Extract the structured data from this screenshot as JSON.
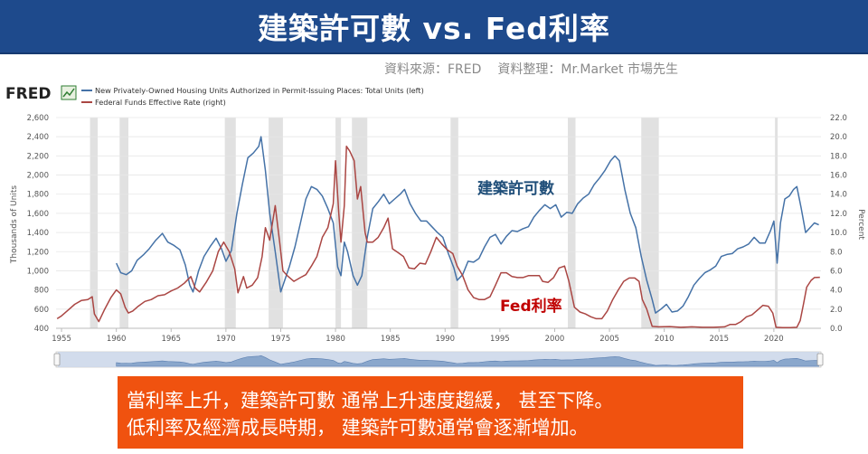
{
  "title": "建築許可數 vs. Fed利率",
  "source": {
    "data_source": "資料來源：FRED",
    "compiled_by": "資料整理：Mr.Market 市場先生"
  },
  "logo_text": "FRED",
  "colors": {
    "title_bg": "#1e4a8c",
    "permits": "#4572a7",
    "fedfunds": "#aa4643",
    "recession": "#e1e1e1",
    "note_bg": "#f0520f"
  },
  "chart_data": {
    "type": "line",
    "xlim": [
      1954.5,
      2024.3
    ],
    "x_ticks": [
      "1955",
      "1960",
      "1965",
      "1970",
      "1975",
      "1980",
      "1985",
      "1990",
      "1995",
      "2000",
      "2005",
      "2010",
      "2015",
      "2020"
    ],
    "y_left": {
      "label": "Thousands of Units",
      "lim": [
        400,
        2600
      ],
      "ticks": [
        "400",
        "600",
        "800",
        "1,000",
        "1,200",
        "1,400",
        "1,600",
        "1,800",
        "2,000",
        "2,200",
        "2,400",
        "2,600"
      ]
    },
    "y_right": {
      "label": "Percent",
      "lim": [
        0,
        22
      ],
      "ticks": [
        "0.0",
        "2.0",
        "4.0",
        "6.0",
        "8.0",
        "10.0",
        "12.0",
        "14.0",
        "16.0",
        "18.0",
        "20.0",
        "22.0"
      ]
    },
    "recessions": [
      [
        1957.6,
        1958.3
      ],
      [
        1960.3,
        1961.1
      ],
      [
        1969.9,
        1970.9
      ],
      [
        1973.9,
        1975.2
      ],
      [
        1980.0,
        1980.5
      ],
      [
        1981.5,
        1982.9
      ],
      [
        1990.5,
        1991.2
      ],
      [
        2001.2,
        2001.9
      ],
      [
        2007.9,
        2009.5
      ],
      [
        2020.1,
        2020.3
      ]
    ],
    "series": [
      {
        "name": "New Privately-Owned Housing Units Authorized in Permit-Issuing Places: Total Units (left)",
        "axis": "left",
        "points": [
          [
            1960.0,
            1080
          ],
          [
            1960.4,
            980
          ],
          [
            1960.9,
            960
          ],
          [
            1961.4,
            1000
          ],
          [
            1961.9,
            1110
          ],
          [
            1962.5,
            1170
          ],
          [
            1963.0,
            1230
          ],
          [
            1963.6,
            1320
          ],
          [
            1964.2,
            1390
          ],
          [
            1964.7,
            1300
          ],
          [
            1965.2,
            1270
          ],
          [
            1965.8,
            1220
          ],
          [
            1966.3,
            1060
          ],
          [
            1966.7,
            850
          ],
          [
            1967.0,
            780
          ],
          [
            1967.5,
            1000
          ],
          [
            1968.0,
            1150
          ],
          [
            1968.6,
            1260
          ],
          [
            1969.1,
            1340
          ],
          [
            1969.6,
            1230
          ],
          [
            1970.0,
            1100
          ],
          [
            1970.5,
            1210
          ],
          [
            1971.0,
            1600
          ],
          [
            1971.5,
            1900
          ],
          [
            1972.0,
            2180
          ],
          [
            1972.5,
            2230
          ],
          [
            1973.0,
            2300
          ],
          [
            1973.2,
            2400
          ],
          [
            1973.6,
            2050
          ],
          [
            1974.0,
            1600
          ],
          [
            1974.5,
            1200
          ],
          [
            1975.0,
            780
          ],
          [
            1975.3,
            880
          ],
          [
            1975.8,
            1050
          ],
          [
            1976.3,
            1250
          ],
          [
            1976.8,
            1500
          ],
          [
            1977.3,
            1750
          ],
          [
            1977.8,
            1880
          ],
          [
            1978.3,
            1850
          ],
          [
            1978.8,
            1780
          ],
          [
            1979.3,
            1650
          ],
          [
            1979.8,
            1500
          ],
          [
            1980.2,
            1040
          ],
          [
            1980.5,
            950
          ],
          [
            1980.8,
            1300
          ],
          [
            1981.1,
            1200
          ],
          [
            1981.6,
            950
          ],
          [
            1982.0,
            850
          ],
          [
            1982.4,
            950
          ],
          [
            1982.9,
            1350
          ],
          [
            1983.4,
            1650
          ],
          [
            1983.9,
            1720
          ],
          [
            1984.4,
            1800
          ],
          [
            1984.9,
            1700
          ],
          [
            1985.4,
            1750
          ],
          [
            1985.9,
            1800
          ],
          [
            1986.3,
            1850
          ],
          [
            1986.8,
            1700
          ],
          [
            1987.3,
            1600
          ],
          [
            1987.8,
            1520
          ],
          [
            1988.3,
            1520
          ],
          [
            1988.8,
            1460
          ],
          [
            1989.3,
            1400
          ],
          [
            1989.8,
            1350
          ],
          [
            1990.3,
            1180
          ],
          [
            1990.8,
            1030
          ],
          [
            1991.1,
            900
          ],
          [
            1991.6,
            960
          ],
          [
            1992.1,
            1100
          ],
          [
            1992.6,
            1090
          ],
          [
            1993.1,
            1130
          ],
          [
            1993.6,
            1250
          ],
          [
            1994.1,
            1350
          ],
          [
            1994.6,
            1380
          ],
          [
            1995.1,
            1280
          ],
          [
            1995.6,
            1360
          ],
          [
            1996.1,
            1420
          ],
          [
            1996.6,
            1410
          ],
          [
            1997.1,
            1440
          ],
          [
            1997.6,
            1460
          ],
          [
            1998.1,
            1560
          ],
          [
            1998.6,
            1630
          ],
          [
            1999.1,
            1690
          ],
          [
            1999.6,
            1650
          ],
          [
            2000.1,
            1690
          ],
          [
            2000.6,
            1560
          ],
          [
            2001.1,
            1610
          ],
          [
            2001.6,
            1600
          ],
          [
            2002.1,
            1700
          ],
          [
            2002.6,
            1760
          ],
          [
            2003.1,
            1800
          ],
          [
            2003.6,
            1900
          ],
          [
            2004.1,
            1970
          ],
          [
            2004.6,
            2050
          ],
          [
            2005.1,
            2150
          ],
          [
            2005.5,
            2200
          ],
          [
            2005.9,
            2150
          ],
          [
            2006.4,
            1850
          ],
          [
            2006.9,
            1600
          ],
          [
            2007.4,
            1450
          ],
          [
            2007.9,
            1150
          ],
          [
            2008.4,
            900
          ],
          [
            2008.9,
            700
          ],
          [
            2009.2,
            560
          ],
          [
            2009.7,
            600
          ],
          [
            2010.2,
            650
          ],
          [
            2010.7,
            570
          ],
          [
            2011.2,
            580
          ],
          [
            2011.7,
            630
          ],
          [
            2012.2,
            730
          ],
          [
            2012.7,
            850
          ],
          [
            2013.2,
            920
          ],
          [
            2013.7,
            980
          ],
          [
            2014.2,
            1010
          ],
          [
            2014.7,
            1050
          ],
          [
            2015.2,
            1150
          ],
          [
            2015.7,
            1170
          ],
          [
            2016.2,
            1180
          ],
          [
            2016.7,
            1230
          ],
          [
            2017.2,
            1250
          ],
          [
            2017.7,
            1280
          ],
          [
            2018.2,
            1350
          ],
          [
            2018.7,
            1290
          ],
          [
            2019.2,
            1290
          ],
          [
            2019.7,
            1420
          ],
          [
            2020.0,
            1520
          ],
          [
            2020.3,
            1080
          ],
          [
            2020.6,
            1500
          ],
          [
            2021.0,
            1750
          ],
          [
            2021.4,
            1780
          ],
          [
            2021.8,
            1850
          ],
          [
            2022.1,
            1880
          ],
          [
            2022.5,
            1650
          ],
          [
            2022.9,
            1400
          ],
          [
            2023.3,
            1450
          ],
          [
            2023.7,
            1500
          ],
          [
            2024.1,
            1480
          ]
        ]
      },
      {
        "name": "Federal Funds Effective Rate (right)",
        "axis": "right",
        "points": [
          [
            1954.6,
            1.0
          ],
          [
            1955.0,
            1.3
          ],
          [
            1955.6,
            1.9
          ],
          [
            1956.2,
            2.5
          ],
          [
            1956.8,
            2.9
          ],
          [
            1957.4,
            3.0
          ],
          [
            1957.8,
            3.3
          ],
          [
            1958.0,
            1.5
          ],
          [
            1958.4,
            0.7
          ],
          [
            1958.9,
            1.9
          ],
          [
            1959.5,
            3.2
          ],
          [
            1960.0,
            4.0
          ],
          [
            1960.4,
            3.6
          ],
          [
            1960.8,
            2.2
          ],
          [
            1961.1,
            1.6
          ],
          [
            1961.5,
            1.8
          ],
          [
            1962.0,
            2.3
          ],
          [
            1962.6,
            2.8
          ],
          [
            1963.2,
            3.0
          ],
          [
            1963.8,
            3.4
          ],
          [
            1964.4,
            3.5
          ],
          [
            1965.0,
            3.9
          ],
          [
            1965.6,
            4.2
          ],
          [
            1966.2,
            4.7
          ],
          [
            1966.8,
            5.4
          ],
          [
            1967.2,
            4.2
          ],
          [
            1967.6,
            3.8
          ],
          [
            1968.2,
            4.8
          ],
          [
            1968.8,
            6.0
          ],
          [
            1969.3,
            8.0
          ],
          [
            1969.8,
            9.0
          ],
          [
            1970.3,
            8.0
          ],
          [
            1970.8,
            6.2
          ],
          [
            1971.1,
            3.7
          ],
          [
            1971.6,
            5.4
          ],
          [
            1971.9,
            4.2
          ],
          [
            1972.4,
            4.5
          ],
          [
            1972.9,
            5.3
          ],
          [
            1973.3,
            7.5
          ],
          [
            1973.6,
            10.5
          ],
          [
            1974.0,
            9.2
          ],
          [
            1974.5,
            12.8
          ],
          [
            1974.9,
            9.0
          ],
          [
            1975.2,
            6.0
          ],
          [
            1975.6,
            5.5
          ],
          [
            1976.2,
            4.9
          ],
          [
            1976.8,
            5.3
          ],
          [
            1977.3,
            5.6
          ],
          [
            1977.8,
            6.5
          ],
          [
            1978.3,
            7.5
          ],
          [
            1978.8,
            9.5
          ],
          [
            1979.3,
            10.5
          ],
          [
            1979.8,
            13.0
          ],
          [
            1980.0,
            17.5
          ],
          [
            1980.3,
            12.0
          ],
          [
            1980.5,
            9.0
          ],
          [
            1980.8,
            12.8
          ],
          [
            1981.0,
            19.0
          ],
          [
            1981.3,
            18.5
          ],
          [
            1981.7,
            17.5
          ],
          [
            1982.0,
            13.5
          ],
          [
            1982.3,
            14.8
          ],
          [
            1982.7,
            10.0
          ],
          [
            1982.9,
            9.0
          ],
          [
            1983.4,
            9.0
          ],
          [
            1983.9,
            9.5
          ],
          [
            1984.4,
            10.5
          ],
          [
            1984.8,
            11.5
          ],
          [
            1985.2,
            8.3
          ],
          [
            1985.7,
            7.9
          ],
          [
            1986.2,
            7.5
          ],
          [
            1986.7,
            6.3
          ],
          [
            1987.2,
            6.2
          ],
          [
            1987.7,
            6.8
          ],
          [
            1988.2,
            6.7
          ],
          [
            1988.7,
            8.0
          ],
          [
            1989.2,
            9.5
          ],
          [
            1989.7,
            8.8
          ],
          [
            1990.2,
            8.2
          ],
          [
            1990.7,
            7.8
          ],
          [
            1991.1,
            6.5
          ],
          [
            1991.6,
            5.5
          ],
          [
            1992.1,
            4.0
          ],
          [
            1992.6,
            3.2
          ],
          [
            1993.1,
            3.0
          ],
          [
            1993.6,
            3.0
          ],
          [
            1994.1,
            3.3
          ],
          [
            1994.6,
            4.5
          ],
          [
            1995.1,
            5.8
          ],
          [
            1995.6,
            5.8
          ],
          [
            1996.1,
            5.4
          ],
          [
            1996.6,
            5.3
          ],
          [
            1997.1,
            5.3
          ],
          [
            1997.6,
            5.5
          ],
          [
            1998.1,
            5.5
          ],
          [
            1998.6,
            5.5
          ],
          [
            1998.9,
            4.9
          ],
          [
            1999.4,
            4.8
          ],
          [
            1999.9,
            5.3
          ],
          [
            2000.4,
            6.3
          ],
          [
            2000.9,
            6.5
          ],
          [
            2001.3,
            4.9
          ],
          [
            2001.8,
            2.2
          ],
          [
            2002.3,
            1.7
          ],
          [
            2002.8,
            1.5
          ],
          [
            2003.3,
            1.2
          ],
          [
            2003.8,
            1.0
          ],
          [
            2004.3,
            1.0
          ],
          [
            2004.8,
            1.8
          ],
          [
            2005.3,
            3.0
          ],
          [
            2005.8,
            4.0
          ],
          [
            2006.3,
            4.9
          ],
          [
            2006.8,
            5.25
          ],
          [
            2007.3,
            5.25
          ],
          [
            2007.7,
            4.9
          ],
          [
            2008.0,
            3.0
          ],
          [
            2008.4,
            2.0
          ],
          [
            2008.9,
            0.2
          ],
          [
            2009.5,
            0.15
          ],
          [
            2010.5,
            0.18
          ],
          [
            2011.5,
            0.1
          ],
          [
            2012.5,
            0.15
          ],
          [
            2013.5,
            0.1
          ],
          [
            2014.5,
            0.1
          ],
          [
            2015.5,
            0.15
          ],
          [
            2016.0,
            0.4
          ],
          [
            2016.5,
            0.4
          ],
          [
            2017.0,
            0.7
          ],
          [
            2017.5,
            1.2
          ],
          [
            2018.0,
            1.4
          ],
          [
            2018.5,
            1.9
          ],
          [
            2019.0,
            2.4
          ],
          [
            2019.5,
            2.3
          ],
          [
            2019.9,
            1.6
          ],
          [
            2020.2,
            0.1
          ],
          [
            2020.8,
            0.08
          ],
          [
            2021.5,
            0.08
          ],
          [
            2022.1,
            0.1
          ],
          [
            2022.4,
            0.8
          ],
          [
            2022.7,
            2.5
          ],
          [
            2023.0,
            4.3
          ],
          [
            2023.4,
            5.0
          ],
          [
            2023.7,
            5.3
          ],
          [
            2024.2,
            5.33
          ]
        ]
      }
    ],
    "annotations": [
      {
        "text": "建築許可數",
        "color": "#1f4e79"
      },
      {
        "text": "Fed利率",
        "color": "#c00000"
      }
    ],
    "legend_placement": "top-left"
  },
  "note": {
    "line1": "當利率上升，建築許可數 通常上升速度趨緩，  甚至下降。",
    "line2": " 低利率及經濟成長時期， 建築許可數通常會逐漸增加。"
  }
}
